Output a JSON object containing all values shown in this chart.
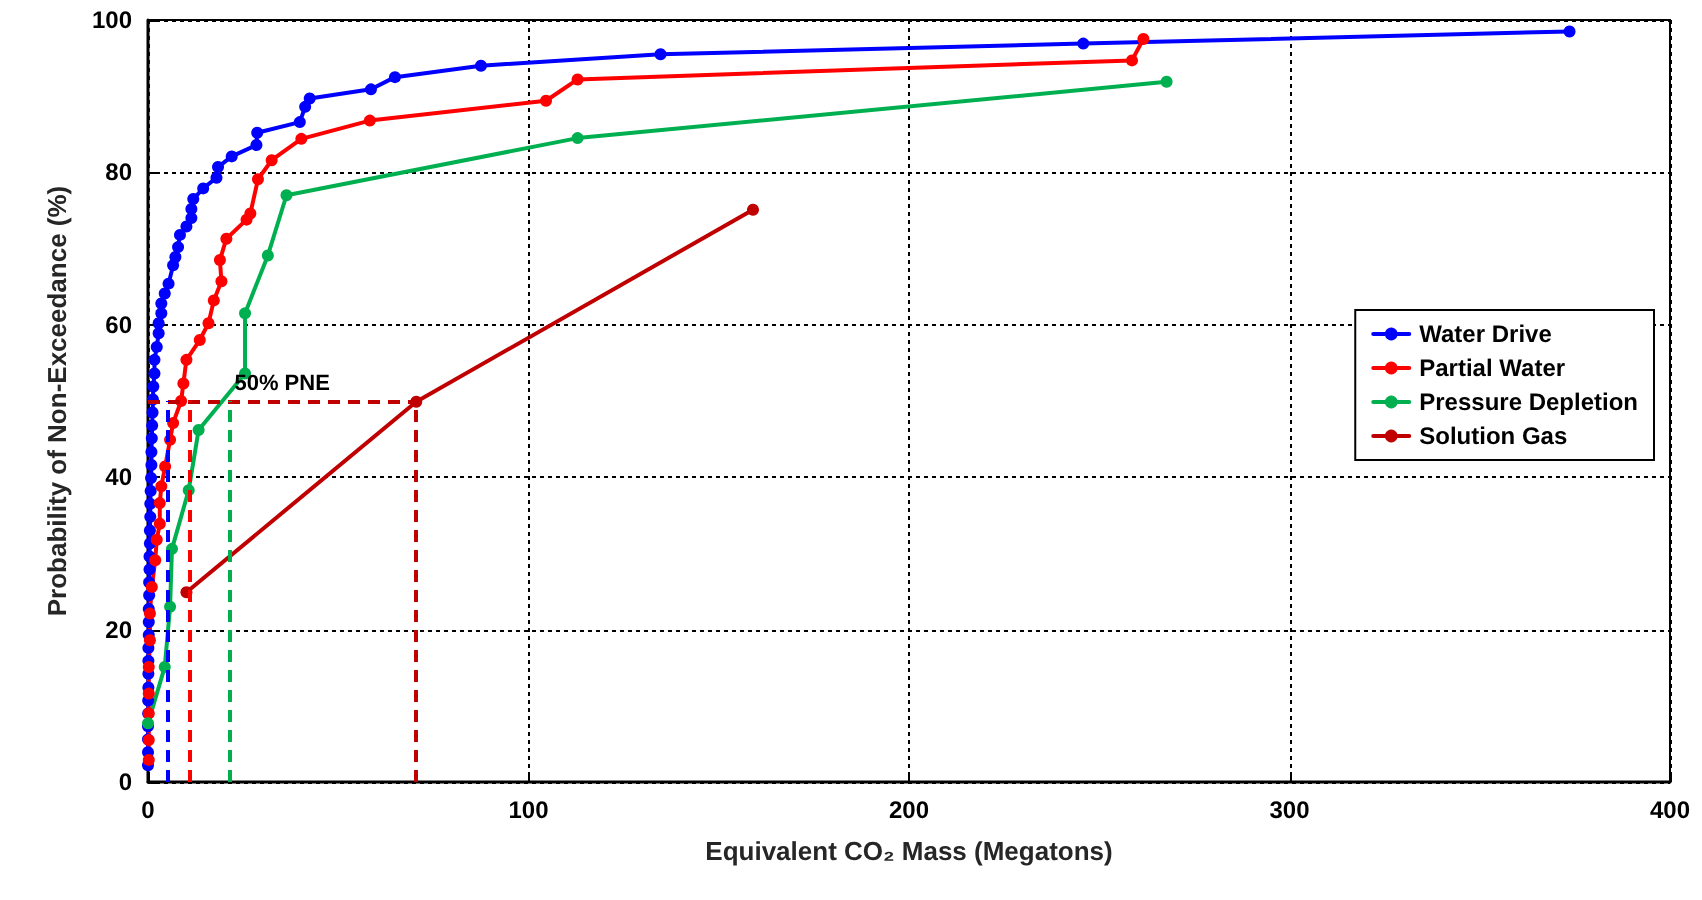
{
  "chart_data": {
    "type": "line",
    "xlabel": "Equivalent CO₂ Mass (Megatons)",
    "ylabel": "Probability of Non-Exceedance (%)",
    "xlim": [
      0,
      400
    ],
    "xticks": [
      0,
      100,
      200,
      300,
      400
    ],
    "ylim": [
      0,
      100
    ],
    "yticks": [
      0,
      20,
      40,
      60,
      80,
      100
    ],
    "grid": true,
    "legend": "right",
    "marker": "circle",
    "line_style": "solid",
    "series": [
      {
        "name": "Water Drive",
        "color": "#0000ff",
        "x": [
          0,
          0,
          0,
          0,
          0.05,
          0.05,
          0.1,
          0.1,
          0.1,
          0.1,
          0.2,
          0.2,
          0.2,
          0.3,
          0.3,
          0.4,
          0.4,
          0.5,
          0.5,
          0.6,
          0.6,
          0.7,
          0.8,
          0.9,
          0.9,
          1.0,
          1.1,
          1.2,
          1.3,
          1.4,
          1.7,
          1.7,
          2.3,
          2.8,
          2.8,
          3.5,
          3.5,
          4.4,
          5.4,
          6.6,
          7.2,
          7.9,
          8.4,
          10.1,
          11.4,
          11.4,
          11.9,
          14.5,
          18,
          18.4,
          22,
          28.5,
          28.7,
          39.9,
          41.3,
          42.5,
          58.6,
          64.9,
          87.5,
          134.7,
          245.8,
          373.6
        ],
        "values": [
          2.2,
          3.9,
          5.6,
          7.3,
          9,
          10.7,
          12.4,
          14.2,
          15.9,
          17.6,
          19.3,
          21,
          22.7,
          24.5,
          26.2,
          27.9,
          29.6,
          31.3,
          33,
          34.8,
          36.5,
          38.2,
          39.9,
          41.6,
          43.3,
          45.1,
          46.8,
          48.5,
          50.2,
          51.9,
          53.6,
          55.4,
          57.1,
          58.9,
          60.2,
          61.5,
          62.8,
          64.1,
          65.4,
          67.8,
          68.9,
          70.2,
          71.8,
          72.9,
          74,
          75.2,
          76.5,
          77.9,
          79.3,
          80.7,
          82.1,
          83.6,
          85.2,
          86.6,
          88.6,
          89.7,
          90.9,
          92.5,
          94,
          95.5,
          96.9,
          98.5
        ]
      },
      {
        "name": "Partial Water",
        "color": "#ff0000",
        "x": [
          0.2,
          0.2,
          0.2,
          0.2,
          0.2,
          0.5,
          0.5,
          1.0,
          1.9,
          2.3,
          3.1,
          3.1,
          3.5,
          4.5,
          5.8,
          6.6,
          8.7,
          9.3,
          10.1,
          13.6,
          15.9,
          17.3,
          19.3,
          18.9,
          20.6,
          25.9,
          26.9,
          28.9,
          32.5,
          40.3,
          58.3,
          104.6,
          112.9,
          258.6,
          261.6
        ],
        "values": [
          2.9,
          5.5,
          9,
          11.6,
          15.1,
          18.6,
          22.1,
          25.6,
          29.1,
          31.8,
          33.9,
          36.6,
          38.8,
          41.4,
          44.9,
          47.1,
          50,
          52.3,
          55.4,
          58,
          60.2,
          63.2,
          65.7,
          68.5,
          71.3,
          73.8,
          74.6,
          79.1,
          81.6,
          84.4,
          86.8,
          89.4,
          92.2,
          94.7,
          97.5
        ]
      },
      {
        "name": "Pressure Depletion",
        "color": "#00b050",
        "x": [
          0,
          4.4,
          5.8,
          6.3,
          10.7,
          13.3,
          25.5,
          25.5,
          31.5,
          36.4,
          112.9,
          267.7
        ],
        "values": [
          7.7,
          15.1,
          23,
          30.6,
          38.3,
          46.2,
          53.6,
          61.5,
          69.1,
          77,
          84.5,
          91.9
        ]
      },
      {
        "name": "Solution Gas",
        "color": "#c00000",
        "x": [
          10.1,
          70.5,
          159
        ],
        "values": [
          24.9,
          49.9,
          75.1
        ]
      }
    ],
    "ref_lines": [
      {
        "axis": "y",
        "value": 50,
        "label": "50% PNE",
        "color": "#c00000",
        "line_style": "dashed"
      },
      {
        "axis": "x",
        "value": 4.9,
        "color": "#0000ff",
        "line_style": "dashed"
      },
      {
        "axis": "x",
        "value": 10.7,
        "color": "#ff0000",
        "line_style": "dashed"
      },
      {
        "axis": "x",
        "value": 21.2,
        "color": "#00b050",
        "line_style": "dashed"
      },
      {
        "axis": "x",
        "value": 70.5,
        "color": "#c00000",
        "line_style": "dashed"
      }
    ]
  }
}
